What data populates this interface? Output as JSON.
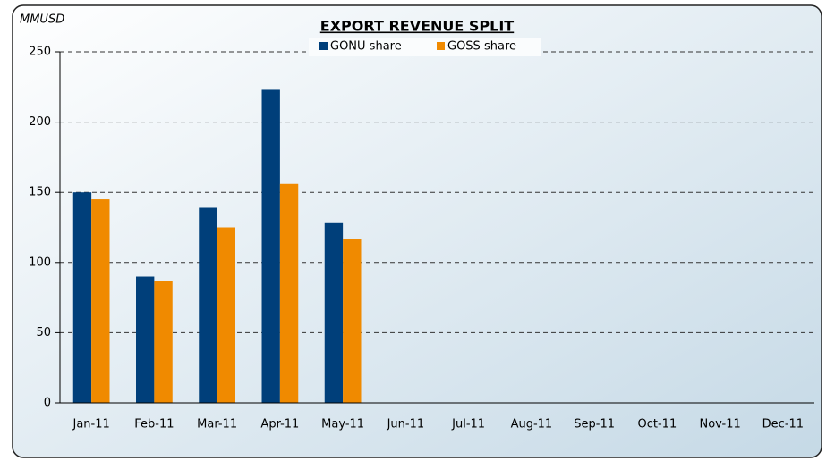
{
  "chart_data": {
    "type": "bar",
    "title": "EXPORT REVENUE SPLIT",
    "y_label": "MMUSD",
    "categories": [
      "Jan-11",
      "Feb-11",
      "Mar-11",
      "Apr-11",
      "May-11",
      "Jun-11",
      "Jul-11",
      "Aug-11",
      "Sep-11",
      "Oct-11",
      "Nov-11",
      "Dec-11"
    ],
    "series": [
      {
        "name": "GONU share",
        "color": "#003f7a",
        "values": [
          150,
          90,
          139,
          223,
          128,
          null,
          null,
          null,
          null,
          null,
          null,
          null
        ]
      },
      {
        "name": "GOSS share",
        "color": "#f08a00",
        "values": [
          145,
          87,
          125,
          156,
          117,
          null,
          null,
          null,
          null,
          null,
          null,
          null
        ]
      }
    ],
    "ylim": [
      0,
      250
    ],
    "yticks": [
      0,
      50,
      100,
      150,
      200,
      250
    ],
    "grid": true,
    "legend": "top"
  }
}
